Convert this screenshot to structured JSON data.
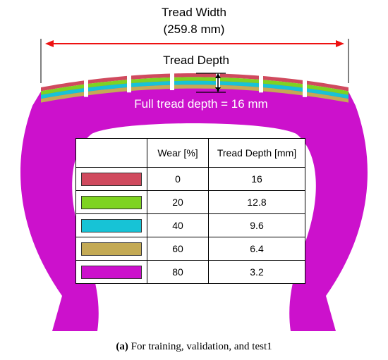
{
  "tread_width": {
    "title": "Tread Width",
    "value": "(259.8 mm)"
  },
  "tread_depth": {
    "title": "Tread Depth"
  },
  "full_depth_label": "Full tread depth = 16 mm",
  "table": {
    "headers": [
      "",
      "Wear [%]",
      "Tread Depth [mm]"
    ],
    "rows": [
      {
        "wear": "0",
        "depth": "16",
        "color": "#d04a5e"
      },
      {
        "wear": "20",
        "depth": "12.8",
        "color": "#7ed321"
      },
      {
        "wear": "40",
        "depth": "9.6",
        "color": "#17c3d6"
      },
      {
        "wear": "60",
        "depth": "6.4",
        "color": "#c4aa55"
      },
      {
        "wear": "80",
        "depth": "3.2",
        "color": "#cc11cc"
      }
    ]
  },
  "caption": {
    "label": "(a)",
    "text": " For training, validation, and test1"
  },
  "colors": {
    "dimension_arrow": "#ee1111",
    "tire_body": "#cc11cc"
  }
}
